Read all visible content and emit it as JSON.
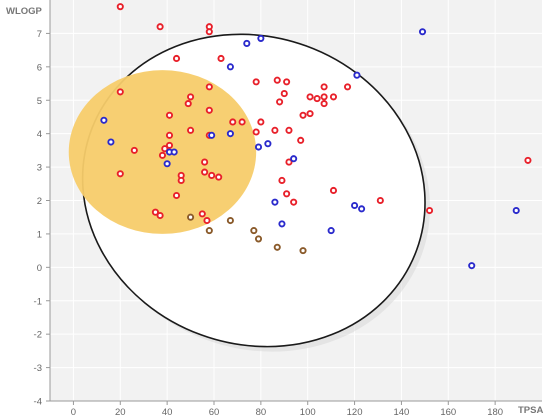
{
  "chart_data": {
    "type": "scatter",
    "xlabel": "TPSA",
    "ylabel": "WLOGP",
    "xlim": [
      -10,
      200
    ],
    "ylim": [
      -4,
      8
    ],
    "x_ticks": [
      0,
      20,
      40,
      60,
      80,
      100,
      120,
      140,
      160,
      180
    ],
    "x_tick_labels": [
      "0",
      "20",
      "40",
      "60",
      "80",
      "100",
      "120",
      "140",
      "160",
      "180"
    ],
    "y_ticks": [
      -4,
      -3,
      -2,
      -1,
      0,
      1,
      2,
      3,
      4,
      5,
      6,
      7
    ],
    "y_tick_labels": [
      "-4",
      "-3",
      "-2",
      "-1",
      "0",
      "1",
      "2",
      "3",
      "4",
      "5",
      "6",
      "7"
    ],
    "grid": true,
    "colors": {
      "plot_background": "#f2f2f2",
      "grid": "#ffffff",
      "egg_white": "#ffffff",
      "egg_white_outline": "#1a1a1a",
      "yolk": "#f7cc6a",
      "red_points": "#e8202a",
      "blue_points": "#2a2acc",
      "brown_points": "#8a5a2a"
    },
    "regions": [
      {
        "shape": "ellipse",
        "fill": "egg_white",
        "center": [
          77,
          2.3
        ],
        "radii": [
          74,
          4.6
        ],
        "rotation_deg": 20
      },
      {
        "shape": "ellipse",
        "fill": "yolk",
        "center": [
          38,
          3.45
        ],
        "radii": [
          40,
          2.45
        ],
        "rotation_deg": 0
      }
    ],
    "series": [
      {
        "color": "red_points",
        "points": [
          [
            20,
            7.8
          ],
          [
            37,
            7.2
          ],
          [
            58,
            7.2
          ],
          [
            58,
            7.05
          ],
          [
            44,
            6.25
          ],
          [
            63,
            6.25
          ],
          [
            20,
            5.25
          ],
          [
            58,
            5.4
          ],
          [
            50,
            5.1
          ],
          [
            49,
            4.9
          ],
          [
            41,
            4.55
          ],
          [
            58,
            4.7
          ],
          [
            78,
            5.55
          ],
          [
            87,
            5.6
          ],
          [
            91,
            5.55
          ],
          [
            90,
            5.2
          ],
          [
            101,
            5.1
          ],
          [
            107,
            5.4
          ],
          [
            104,
            5.05
          ],
          [
            107,
            5.1
          ],
          [
            111,
            5.1
          ],
          [
            107,
            4.9
          ],
          [
            88,
            4.95
          ],
          [
            117,
            5.4
          ],
          [
            68,
            4.35
          ],
          [
            72,
            4.35
          ],
          [
            80,
            4.35
          ],
          [
            78,
            4.05
          ],
          [
            86,
            4.1
          ],
          [
            92,
            4.1
          ],
          [
            98,
            4.55
          ],
          [
            101,
            4.6
          ],
          [
            50,
            4.1
          ],
          [
            41,
            3.95
          ],
          [
            58,
            3.95
          ],
          [
            97,
            3.8
          ],
          [
            39,
            3.55
          ],
          [
            41,
            3.65
          ],
          [
            38,
            3.35
          ],
          [
            26,
            3.5
          ],
          [
            56,
            3.15
          ],
          [
            92,
            3.15
          ],
          [
            20,
            2.8
          ],
          [
            46,
            2.75
          ],
          [
            46,
            2.6
          ],
          [
            56,
            2.85
          ],
          [
            59,
            2.75
          ],
          [
            62,
            2.7
          ],
          [
            89,
            2.6
          ],
          [
            44,
            2.15
          ],
          [
            91,
            2.2
          ],
          [
            111,
            2.3
          ],
          [
            94,
            1.95
          ],
          [
            131,
            2.0
          ],
          [
            35,
            1.65
          ],
          [
            37,
            1.55
          ],
          [
            55,
            1.6
          ],
          [
            57,
            1.4
          ],
          [
            152,
            1.7
          ],
          [
            194,
            3.2
          ]
        ]
      },
      {
        "color": "blue_points",
        "points": [
          [
            13,
            4.4
          ],
          [
            16,
            3.75
          ],
          [
            41,
            3.45
          ],
          [
            43,
            3.45
          ],
          [
            40,
            3.1
          ],
          [
            59,
            3.95
          ],
          [
            67,
            4.0
          ],
          [
            79,
            3.6
          ],
          [
            83,
            3.7
          ],
          [
            94,
            3.25
          ],
          [
            74,
            6.7
          ],
          [
            80,
            6.85
          ],
          [
            67,
            6.0
          ],
          [
            121,
            5.75
          ],
          [
            149,
            7.05
          ],
          [
            86,
            1.95
          ],
          [
            120,
            1.85
          ],
          [
            123,
            1.75
          ],
          [
            89,
            1.3
          ],
          [
            110,
            1.1
          ],
          [
            170,
            0.05
          ],
          [
            189,
            1.7
          ]
        ]
      },
      {
        "color": "brown_points",
        "points": [
          [
            50,
            1.5
          ],
          [
            58,
            1.1
          ],
          [
            67,
            1.4
          ],
          [
            77,
            1.1
          ],
          [
            79,
            0.85
          ],
          [
            87,
            0.6
          ],
          [
            98,
            0.5
          ]
        ]
      }
    ]
  }
}
